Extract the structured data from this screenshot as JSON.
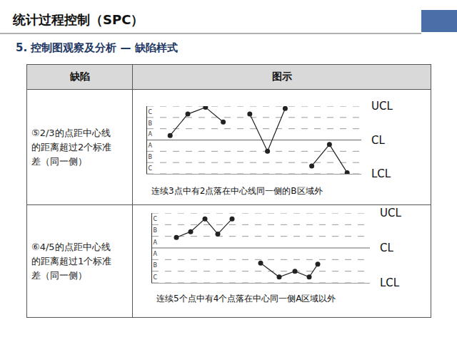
{
  "header": {
    "title": "统计过程控制（SPC）",
    "subtitle": "5. 控制图观察及分析 — 缺陷样式"
  },
  "table": {
    "columns": [
      "缺陷",
      "图示"
    ],
    "rows": [
      {
        "defect": [
          "⑤2/3的点距中心线",
          "的距离超过2个标准",
          "差（同一侧）"
        ]
      },
      {
        "defect": [
          "⑥4/5的点距中心线",
          "的距离超过1个标准",
          "差（同一侧）"
        ]
      }
    ]
  },
  "chart_data": [
    {
      "type": "line",
      "color": "#222222",
      "marker": "circle",
      "line_style": "solid",
      "tick_labels": "y",
      "caption": "连续3点中有2点落在中心线同一侧的B区域外",
      "x": [
        1,
        2,
        3,
        4,
        4.75,
        5.5,
        6.5,
        7.5,
        8.25,
        9,
        10,
        11
      ],
      "values": [
        0.4,
        2.3,
        2.9,
        1.6,
        null,
        2.3,
        -1.0,
        2.8,
        null,
        -2.3,
        -0.4,
        -2.9
      ],
      "xlim": [
        -0.3,
        11.8
      ],
      "ylim": [
        -3,
        3
      ],
      "yticks": [
        {
          "value": 2.5,
          "label": "C"
        },
        {
          "value": 1.5,
          "label": "B"
        },
        {
          "value": 0.5,
          "label": "A"
        },
        {
          "value": -0.5,
          "label": "A"
        },
        {
          "value": -1.5,
          "label": "B"
        },
        {
          "value": -2.5,
          "label": "C"
        }
      ],
      "zone_lines": [
        -2,
        -1,
        1,
        2
      ],
      "limits": [
        {
          "value": 3,
          "label": "UCL"
        },
        {
          "value": 0,
          "label": "CL"
        },
        {
          "value": -3,
          "label": "LCL"
        }
      ]
    },
    {
      "type": "line",
      "color": "#222222",
      "marker": "circle",
      "line_style": "solid",
      "tick_labels": "y",
      "caption": "连续5个点中有4个点落在中心同一侧A区域以外",
      "x": [
        1.7,
        2.7,
        3.7,
        4.6,
        5.6,
        6.6,
        7.6,
        8.9,
        10,
        11,
        11.6
      ],
      "values": [
        0.9,
        1.4,
        2.5,
        1.2,
        2.5,
        null,
        -1.3,
        -2.5,
        -2.0,
        -2.5,
        -1.4
      ],
      "xlim": [
        0,
        15.25
      ],
      "ylim": [
        -3,
        3
      ],
      "yticks": [
        {
          "value": 2.5,
          "label": "C"
        },
        {
          "value": 1.5,
          "label": "B"
        },
        {
          "value": 0.5,
          "label": "A"
        },
        {
          "value": -0.5,
          "label": "A"
        },
        {
          "value": -1.5,
          "label": "B"
        },
        {
          "value": -2.5,
          "label": "C"
        }
      ],
      "zone_lines": [
        -2,
        -1,
        1,
        2
      ],
      "limits": [
        {
          "value": 3,
          "label": "UCL"
        },
        {
          "value": 0,
          "label": "CL"
        },
        {
          "value": -3,
          "label": "LCL"
        }
      ]
    }
  ]
}
